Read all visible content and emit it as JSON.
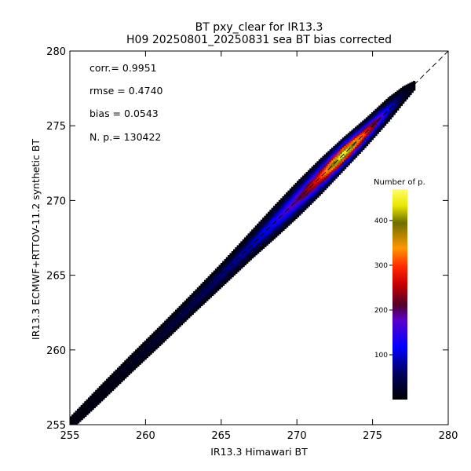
{
  "chart_data": {
    "type": "heatmap",
    "title": "BT pxy_clear for IR13.3",
    "subtitle": "H09 20250801_20250831 sea BT bias corrected",
    "xlabel": "IR13.3 Himawari BT",
    "ylabel": "IR13.3 ECMWF+RTTOV-11.2 synthetic BT",
    "xlim": [
      255,
      280
    ],
    "ylim": [
      255,
      280
    ],
    "x_ticks": [
      "255",
      "260",
      "265",
      "270",
      "275",
      "280"
    ],
    "y_ticks": [
      "255",
      "260",
      "265",
      "270",
      "275",
      "280"
    ],
    "grid": false,
    "one_to_one_line": true,
    "stats": [
      {
        "label": "corr.=",
        "value": "0.9951"
      },
      {
        "label": "rmse =",
        "value": "0.4740"
      },
      {
        "label": "bias =",
        "value": "0.0543"
      },
      {
        "label": "N. p.=",
        "value": "130422"
      }
    ],
    "density_ridge": [
      {
        "x": 255.0,
        "center": 255.1,
        "halfwidth": 0.45,
        "peak": 5
      },
      {
        "x": 257.0,
        "center": 257.1,
        "halfwidth": 0.55,
        "peak": 15
      },
      {
        "x": 259.0,
        "center": 259.1,
        "halfwidth": 0.6,
        "peak": 25
      },
      {
        "x": 261.0,
        "center": 261.05,
        "halfwidth": 0.65,
        "peak": 40
      },
      {
        "x": 263.0,
        "center": 263.05,
        "halfwidth": 0.7,
        "peak": 55
      },
      {
        "x": 265.0,
        "center": 265.05,
        "halfwidth": 0.8,
        "peak": 70
      },
      {
        "x": 267.0,
        "center": 267.1,
        "halfwidth": 0.95,
        "peak": 95
      },
      {
        "x": 268.5,
        "center": 268.6,
        "halfwidth": 1.1,
        "peak": 140
      },
      {
        "x": 270.0,
        "center": 270.1,
        "halfwidth": 1.2,
        "peak": 200
      },
      {
        "x": 271.5,
        "center": 271.6,
        "halfwidth": 1.2,
        "peak": 300
      },
      {
        "x": 273.0,
        "center": 273.1,
        "halfwidth": 1.1,
        "peak": 470
      },
      {
        "x": 274.5,
        "center": 274.55,
        "halfwidth": 0.95,
        "peak": 300
      },
      {
        "x": 276.0,
        "center": 276.1,
        "halfwidth": 0.8,
        "peak": 120
      },
      {
        "x": 277.0,
        "center": 277.1,
        "halfwidth": 0.55,
        "peak": 40
      },
      {
        "x": 277.7,
        "center": 277.7,
        "halfwidth": 0.3,
        "peak": 8
      }
    ],
    "colorbar": {
      "title": "Number of p.",
      "ticks": [
        "100",
        "200",
        "300",
        "400"
      ],
      "range": [
        0,
        470
      ]
    }
  }
}
